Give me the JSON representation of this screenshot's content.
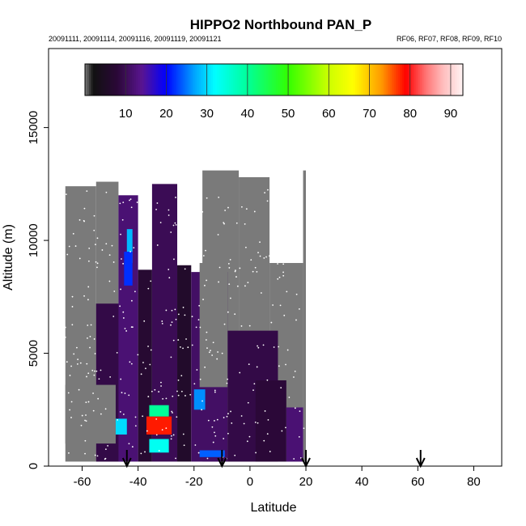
{
  "chart_data": {
    "type": "heatmap",
    "title": "HIPPO2 Northbound PAN_P",
    "subtitle_left": "20091111, 20091114, 20091116, 20091119, 20091121",
    "subtitle_right": "RF06, RF07, RF08, RF09, RF10",
    "xlabel": "Latitude",
    "ylabel": "Altitude (m)",
    "xlim": [
      -72,
      90
    ],
    "ylim": [
      0,
      18500
    ],
    "xticks": [
      -60,
      -40,
      -20,
      0,
      20,
      40,
      60,
      80
    ],
    "yticks": [
      0,
      5000,
      10000,
      15000
    ],
    "colorbar": {
      "range": [
        0,
        93
      ],
      "ticks": [
        10,
        20,
        30,
        40,
        50,
        60,
        70,
        80,
        90
      ],
      "stops": [
        {
          "v": 0,
          "c": "#7a7a7a"
        },
        {
          "v": 2,
          "c": "#111111"
        },
        {
          "v": 8,
          "c": "#2b0838"
        },
        {
          "v": 14,
          "c": "#5a1590"
        },
        {
          "v": 20,
          "c": "#0000ff"
        },
        {
          "v": 27,
          "c": "#00a6ff"
        },
        {
          "v": 32,
          "c": "#00ffff"
        },
        {
          "v": 40,
          "c": "#00ff99"
        },
        {
          "v": 50,
          "c": "#33ff00"
        },
        {
          "v": 60,
          "c": "#ccff00"
        },
        {
          "v": 66,
          "c": "#ffff00"
        },
        {
          "v": 73,
          "c": "#ff9900"
        },
        {
          "v": 79,
          "c": "#ff0000"
        },
        {
          "v": 84,
          "c": "#ff7777"
        },
        {
          "v": 88,
          "c": "#ffbbbb"
        },
        {
          "v": 93,
          "c": "#fff4f4"
        }
      ]
    },
    "regions": [
      {
        "x": [
          -66,
          -55
        ],
        "y": [
          200,
          12400
        ],
        "v": 0
      },
      {
        "x": [
          -55,
          -47
        ],
        "y": [
          200,
          12600
        ],
        "v": 0
      },
      {
        "x": [
          -55,
          -45
        ],
        "y": [
          200,
          7200
        ],
        "v": 9
      },
      {
        "x": [
          -47,
          -40
        ],
        "y": [
          200,
          12000
        ],
        "v": 12
      },
      {
        "x": [
          -40,
          -35
        ],
        "y": [
          200,
          8700
        ],
        "v": 7
      },
      {
        "x": [
          -35,
          -26
        ],
        "y": [
          200,
          12500
        ],
        "v": 10
      },
      {
        "x": [
          -26,
          -21
        ],
        "y": [
          200,
          8900
        ],
        "v": 6
      },
      {
        "x": [
          -17,
          -4
        ],
        "y": [
          200,
          13100
        ],
        "v": 0
      },
      {
        "x": [
          -4,
          7
        ],
        "y": [
          200,
          12800
        ],
        "v": 0
      },
      {
        "x": [
          7,
          19
        ],
        "y": [
          200,
          9000
        ],
        "v": 0
      },
      {
        "x": [
          19,
          20
        ],
        "y": [
          200,
          13100
        ],
        "v": 0
      },
      {
        "x": [
          -21,
          -8
        ],
        "y": [
          200,
          8600
        ],
        "v": 11
      },
      {
        "x": [
          -8,
          10
        ],
        "y": [
          200,
          6000
        ],
        "v": 9
      },
      {
        "x": [
          2,
          13
        ],
        "y": [
          200,
          3800
        ],
        "v": 8
      },
      {
        "x": [
          13,
          19
        ],
        "y": [
          200,
          2600
        ],
        "v": 12
      },
      {
        "x": [
          -66,
          -48
        ],
        "y": [
          1000,
          3600
        ],
        "v": 0
      },
      {
        "x": [
          -18,
          -8
        ],
        "y": [
          3500,
          9000
        ],
        "v": 0
      },
      {
        "x": [
          -44,
          -42
        ],
        "y": [
          9000,
          10500
        ],
        "v": 28
      },
      {
        "x": [
          -45,
          -42
        ],
        "y": [
          8000,
          9500
        ],
        "v": 22
      },
      {
        "x": [
          -48,
          -44
        ],
        "y": [
          1400,
          2100
        ],
        "v": 30
      },
      {
        "x": [
          -37,
          -28
        ],
        "y": [
          1400,
          2200
        ],
        "v": 78
      },
      {
        "x": [
          -36,
          -29
        ],
        "y": [
          2200,
          2700
        ],
        "v": 40
      },
      {
        "x": [
          -36,
          -29
        ],
        "y": [
          600,
          1200
        ],
        "v": 33
      },
      {
        "x": [
          -20,
          -16
        ],
        "y": [
          2500,
          3400
        ],
        "v": 26
      },
      {
        "x": [
          -18,
          -9
        ],
        "y": [
          400,
          700
        ],
        "v": 24
      }
    ],
    "arrows_latitude": [
      -44,
      -10,
      20,
      61
    ]
  }
}
